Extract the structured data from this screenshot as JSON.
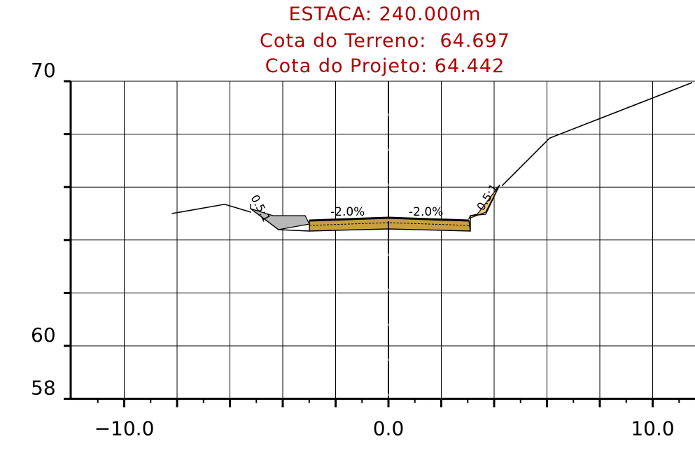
{
  "header": {
    "station": "ESTACA: 240.000m",
    "terrain_elevation": "Cota do Terreno:  64.697",
    "project_elevation": "Cota do Projeto: 64.442"
  },
  "colors": {
    "title": "#b00000",
    "grid": "#000000",
    "cut_fill": "#f0c878",
    "fill_gray": "#b8b8b8",
    "pavement": "#c8a040"
  },
  "chart_data": {
    "type": "line",
    "title": "",
    "xlabel": "",
    "ylabel": "",
    "xlim": [
      -12.5,
      11.5
    ],
    "ylim": [
      58,
      70
    ],
    "x_tick_labels": [
      "−10.0",
      "0.0",
      "10.0"
    ],
    "y_tick_labels": [
      "70",
      "60",
      "58"
    ],
    "grid": true,
    "series": [
      {
        "x": [
          -8.2,
          -6.2,
          -5.2
        ],
        "y": [
          65.0,
          65.35,
          65.05
        ]
      },
      {
        "x": [
          4.3,
          6.1,
          11.5
        ],
        "y": [
          66.05,
          67.85,
          69.95
        ]
      }
    ],
    "annotations": {
      "left_slope": "0.5:1",
      "right_slope": "0.5:1",
      "left_crossfall": "-2.0%",
      "right_crossfall": "-2.0%"
    }
  }
}
